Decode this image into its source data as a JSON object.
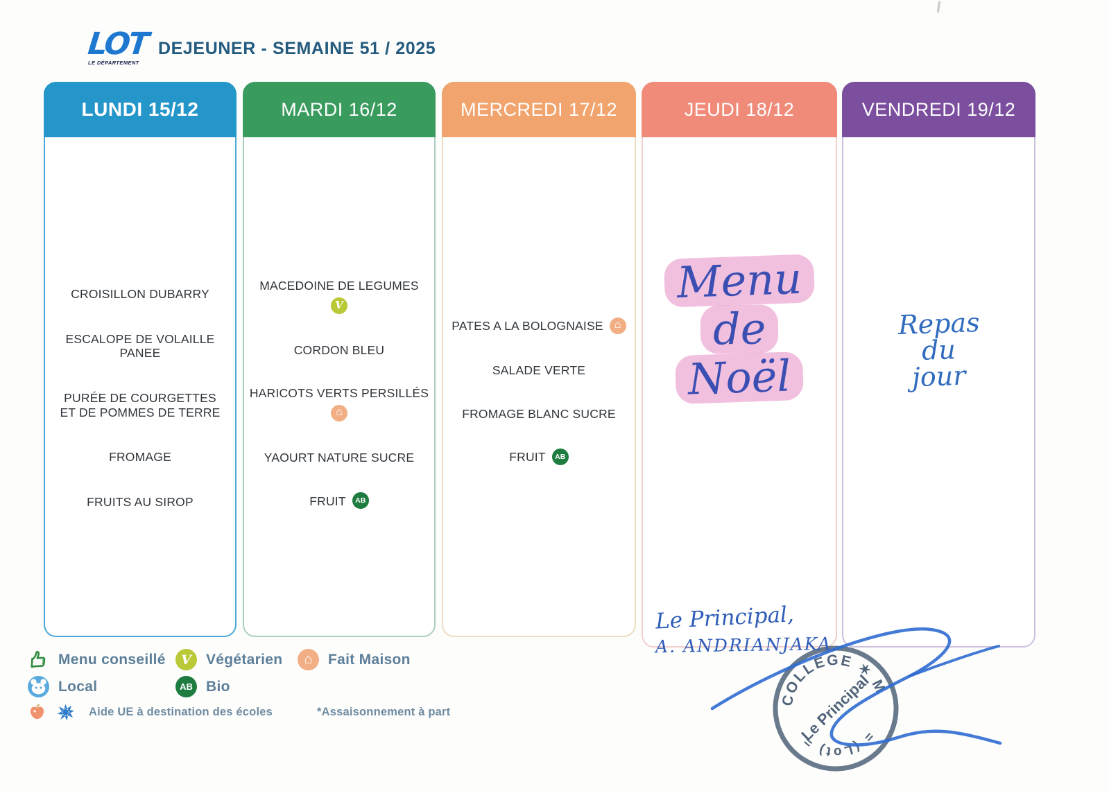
{
  "page": {
    "logo_title": "LOT",
    "logo_subtitle": "LE DÉPARTEMENT",
    "title": "DEJEUNER - SEMAINE 51 / 2025"
  },
  "columns": [
    {
      "day": "LUNDI 15/12",
      "header_color": "#2496c9",
      "border_color": "#4da8d3",
      "type": "menu",
      "items": [
        {
          "text": "CROISILLON DUBARRY"
        },
        {
          "text": "ESCALOPE DE VOLAILLE PANEE"
        },
        {
          "text": "PURÉE DE COURGETTES ET DE POMMES DE TERRE"
        },
        {
          "text": "FROMAGE"
        },
        {
          "text": "FRUITS AU SIROP"
        }
      ]
    },
    {
      "day": "MARDI 16/12",
      "header_color": "#3a9b5e",
      "border_color": "#a9cfbc",
      "type": "menu",
      "items": [
        {
          "text": "MACEDOINE DE LEGUMES",
          "icon": "vegetarian",
          "icon_position": "below"
        },
        {
          "text": "CORDON BLEU"
        },
        {
          "text": "HARICOTS VERTS PERSILLÉS",
          "icon": "fait-maison",
          "icon_position": "below"
        },
        {
          "text": "YAOURT NATURE SUCRE"
        },
        {
          "text": "FRUIT",
          "icon": "bio",
          "icon_position": "inline"
        }
      ]
    },
    {
      "day": "MERCREDI 17/12",
      "header_color": "#f1a46d",
      "border_color": "#eedcc2",
      "type": "menu",
      "items": [
        {
          "text": "PATES A LA BOLOGNAISE",
          "icon": "fait-maison",
          "icon_position": "inline"
        },
        {
          "text": "SALADE VERTE"
        },
        {
          "text": "FROMAGE BLANC SUCRE"
        },
        {
          "text": "FRUIT",
          "icon": "bio",
          "icon_position": "inline"
        }
      ]
    },
    {
      "day": "JEUDI 18/12",
      "header_color": "#f08a79",
      "border_color": "#f2cfc9",
      "type": "handwritten-highlight",
      "lines": [
        "Menu",
        "de",
        "Noël"
      ]
    },
    {
      "day": "VENDREDI 19/12",
      "header_color": "#7b4f9e",
      "border_color": "#cfc0dd",
      "type": "handwritten",
      "lines": [
        "Repas",
        "du",
        "jour"
      ]
    }
  ],
  "legend": {
    "rows": [
      [
        {
          "icon": "menu-conseille",
          "label": "Menu conseillé"
        },
        {
          "icon": "vegetarian",
          "label": "Végétarien"
        },
        {
          "icon": "fait-maison",
          "label": "Fait Maison"
        }
      ],
      [
        {
          "icon": "local",
          "label": "Local"
        },
        {
          "icon": "bio",
          "label": "Bio"
        }
      ]
    ],
    "note_icons": [
      "apple",
      "eu-splash"
    ],
    "note_text": "Aide UE à destination des écoles",
    "note_aside": "*Assaisonnement à part"
  },
  "signature": {
    "line1": "Le Principal,",
    "line2": "A. ANDRIANJAKA"
  },
  "stamp": {
    "arc_top": "COLLÈGE ✶ MARTEL",
    "arc_bottom": "= (Lot) =",
    "center": "Le Principal"
  },
  "ink": {
    "pen_blue": "#2f6bd0",
    "highlighter_pink": "#e78dc5",
    "stamp_ink": "#42566e"
  }
}
